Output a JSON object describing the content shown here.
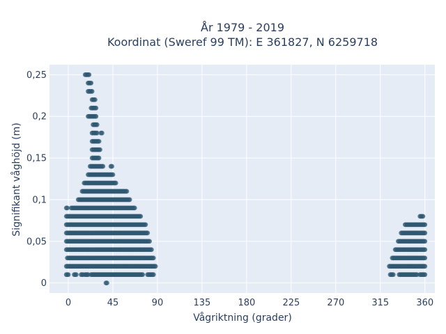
{
  "chart_data": {
    "type": "scatter",
    "title": "År 1979 - 2019",
    "subtitle": "Koordinat (Sweref 99 TM): E 361827, N 6259718",
    "xlabel": "Vågriktning (grader)",
    "ylabel": "Signifikant våghöjd (m)",
    "xlim": [
      -19,
      370
    ],
    "ylim": [
      -0.012,
      0.262
    ],
    "x_ticks": [
      0,
      45,
      90,
      135,
      180,
      225,
      270,
      315,
      360
    ],
    "x_tick_labels": [
      "0",
      "45",
      "90",
      "135",
      "180",
      "225",
      "270",
      "315",
      "360"
    ],
    "y_ticks": [
      0,
      0.05,
      0.1,
      0.15,
      0.2,
      0.25
    ],
    "y_tick_labels": [
      "0",
      "0,05",
      "0,1",
      "0,15",
      "0,2",
      "0,25"
    ],
    "grid": true,
    "legend": "none",
    "marker_color": "#2f5870",
    "plot_background": "#e5ecf6",
    "series": [
      {
        "bands": [
          {
            "y": 0.0,
            "x": [
              [
                38,
                39
              ]
            ]
          },
          {
            "y": 0.01,
            "x": [
              [
                -2,
                0
              ],
              [
                6,
                8
              ],
              [
                13,
                15
              ],
              [
                17,
                20
              ],
              [
                23,
                75
              ],
              [
                80,
                86
              ]
            ]
          },
          {
            "y": 0.02,
            "x": [
              [
                -2,
                88
              ]
            ]
          },
          {
            "y": 0.03,
            "x": [
              [
                -1,
                86
              ]
            ]
          },
          {
            "y": 0.04,
            "x": [
              [
                -2,
                84
              ]
            ]
          },
          {
            "y": 0.05,
            "x": [
              [
                -2,
                82
              ]
            ]
          },
          {
            "y": 0.06,
            "x": [
              [
                -2,
                80
              ]
            ]
          },
          {
            "y": 0.07,
            "x": [
              [
                -2,
                78
              ]
            ]
          },
          {
            "y": 0.08,
            "x": [
              [
                -2,
                73
              ]
            ]
          },
          {
            "y": 0.09,
            "x": [
              [
                -2,
                -1
              ],
              [
                3,
                67
              ]
            ]
          },
          {
            "y": 0.1,
            "x": [
              [
                10,
                62
              ]
            ]
          },
          {
            "y": 0.11,
            "x": [
              [
                14,
                59
              ]
            ]
          },
          {
            "y": 0.12,
            "x": [
              [
                16,
                48
              ]
            ]
          },
          {
            "y": 0.13,
            "x": [
              [
                20,
                45
              ]
            ]
          },
          {
            "y": 0.14,
            "x": [
              [
                22,
                35
              ],
              [
                43,
                44
              ]
            ]
          },
          {
            "y": 0.15,
            "x": [
              [
                24,
                31
              ]
            ]
          },
          {
            "y": 0.16,
            "x": [
              [
                24,
                32
              ]
            ]
          },
          {
            "y": 0.17,
            "x": [
              [
                24,
                31
              ]
            ]
          },
          {
            "y": 0.18,
            "x": [
              [
                24,
                29
              ],
              [
                33,
                34
              ]
            ]
          },
          {
            "y": 0.19,
            "x": [
              [
                25,
                29
              ]
            ]
          },
          {
            "y": 0.2,
            "x": [
              [
                20,
                28
              ]
            ]
          },
          {
            "y": 0.21,
            "x": [
              [
                23,
                28
              ]
            ]
          },
          {
            "y": 0.22,
            "x": [
              [
                24,
                27
              ]
            ]
          },
          {
            "y": 0.23,
            "x": [
              [
                20,
                24
              ]
            ]
          },
          {
            "y": 0.24,
            "x": [
              [
                20,
                23
              ]
            ]
          },
          {
            "y": 0.25,
            "x": [
              [
                17,
                21
              ]
            ]
          }
        ]
      },
      {
        "bands": [
          {
            "y": 0.01,
            "x": [
              [
                325,
                328
              ],
              [
                334,
                352
              ],
              [
                355,
                360
              ]
            ]
          },
          {
            "y": 0.02,
            "x": [
              [
                324,
                360
              ]
            ]
          },
          {
            "y": 0.03,
            "x": [
              [
                327,
                360
              ]
            ]
          },
          {
            "y": 0.04,
            "x": [
              [
                330,
                360
              ]
            ]
          },
          {
            "y": 0.05,
            "x": [
              [
                333,
                360
              ]
            ]
          },
          {
            "y": 0.06,
            "x": [
              [
                336,
                360
              ]
            ]
          },
          {
            "y": 0.07,
            "x": [
              [
                340,
                360
              ]
            ]
          },
          {
            "y": 0.08,
            "x": [
              [
                355,
                358
              ]
            ]
          }
        ]
      }
    ]
  }
}
